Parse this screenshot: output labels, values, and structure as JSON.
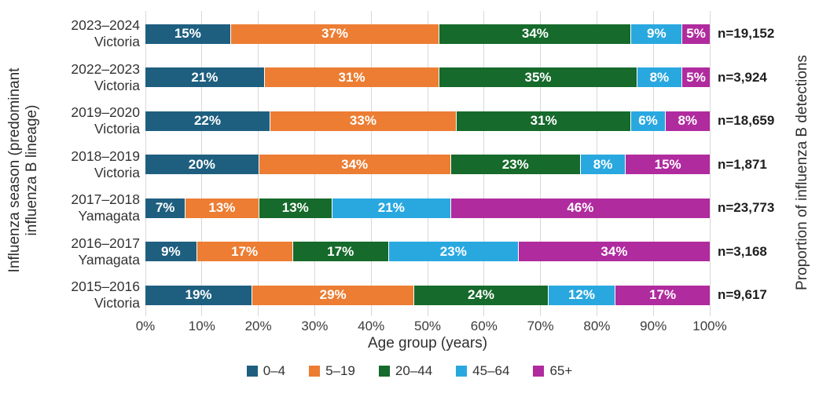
{
  "chart_data": {
    "type": "bar",
    "stacked": true,
    "orientation": "horizontal",
    "title": "",
    "xlabel": "Age group (years)",
    "ylabel_left": {
      "line1": "Influenza season (predominant",
      "line2": "influenza B lineage)"
    },
    "ylabel_right": "Proportion of influenza B detections",
    "xlim": [
      0,
      100
    ],
    "xticks": [
      "0%",
      "10%",
      "20%",
      "30%",
      "40%",
      "50%",
      "60%",
      "70%",
      "80%",
      "90%",
      "100%"
    ],
    "grid": "vertical",
    "grid_color": "#d8d8d8",
    "bar_label_color": "#ffffff",
    "legend_position": "bottom",
    "categories": [
      {
        "season": "2023–2024",
        "lineage": "Victoria",
        "n_label": "n=19,152"
      },
      {
        "season": "2022–2023",
        "lineage": "Victoria",
        "n_label": "n=3,924"
      },
      {
        "season": "2019–2020",
        "lineage": "Victoria",
        "n_label": "n=18,659"
      },
      {
        "season": "2018–2019",
        "lineage": "Victoria",
        "n_label": "n=1,871"
      },
      {
        "season": "2017–2018",
        "lineage": "Yamagata",
        "n_label": "n=23,773"
      },
      {
        "season": "2016–2017",
        "lineage": "Yamagata",
        "n_label": "n=3,168"
      },
      {
        "season": "2015–2016",
        "lineage": "Victoria",
        "n_label": "n=9,617"
      }
    ],
    "series": [
      {
        "name": "0–4",
        "color": "#1e5f80",
        "values": [
          15,
          21,
          22,
          20,
          7,
          9,
          19
        ]
      },
      {
        "name": "5–19",
        "color": "#ec7d33",
        "values": [
          37,
          31,
          33,
          34,
          13,
          17,
          29
        ]
      },
      {
        "name": "20–44",
        "color": "#166a2b",
        "values": [
          34,
          35,
          31,
          23,
          13,
          17,
          24
        ]
      },
      {
        "name": "45–64",
        "color": "#29a8e0",
        "values": [
          9,
          8,
          6,
          8,
          21,
          23,
          12
        ]
      },
      {
        "name": "65+",
        "color": "#b02b9e",
        "values": [
          5,
          5,
          8,
          15,
          46,
          34,
          17
        ]
      }
    ],
    "value_label_format": "{v}%"
  }
}
